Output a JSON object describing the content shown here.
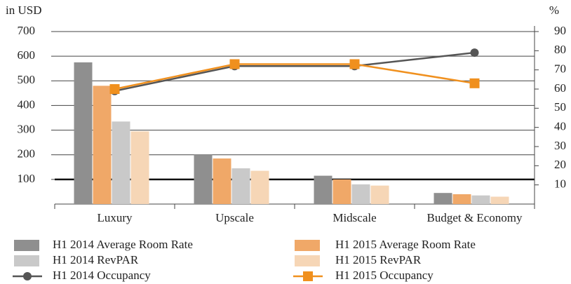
{
  "chart_data": {
    "type": "bar",
    "y_axis_label": "in USD",
    "y2_axis_label": "%",
    "categories": [
      "Luxury",
      "Upscale",
      "Midscale",
      "Budget & Economy"
    ],
    "series": [
      {
        "name": "H1 2014 Average Room Rate",
        "color": "#8f8f8f",
        "values": [
          575,
          200,
          115,
          45
        ]
      },
      {
        "name": "H1 2015 Average Room Rate",
        "color": "#f0a868",
        "values": [
          480,
          185,
          100,
          40
        ]
      },
      {
        "name": "H1 2014 RevPAR",
        "color": "#c9c9c9",
        "values": [
          335,
          145,
          80,
          35
        ]
      },
      {
        "name": "H1 2015 RevPAR",
        "color": "#f6d6b6",
        "values": [
          295,
          135,
          75,
          30
        ]
      },
      {
        "name": "H1 2014 Occupancy",
        "color": "#555555",
        "type": "line",
        "axis": "y2",
        "marker": "circle",
        "values": [
          59,
          72,
          72,
          79
        ]
      },
      {
        "name": "H1 2015 Occupancy",
        "color": "#f0901e",
        "type": "line",
        "axis": "y2",
        "marker": "square",
        "values": [
          60,
          73,
          73,
          63
        ]
      }
    ],
    "ylim": [
      0,
      700
    ],
    "yticks": [
      100,
      200,
      300,
      400,
      500,
      600,
      700
    ],
    "y2lim": [
      0,
      90
    ],
    "y2ticks": [
      10,
      20,
      30,
      40,
      50,
      60,
      70,
      80,
      90
    ],
    "grid": true
  }
}
